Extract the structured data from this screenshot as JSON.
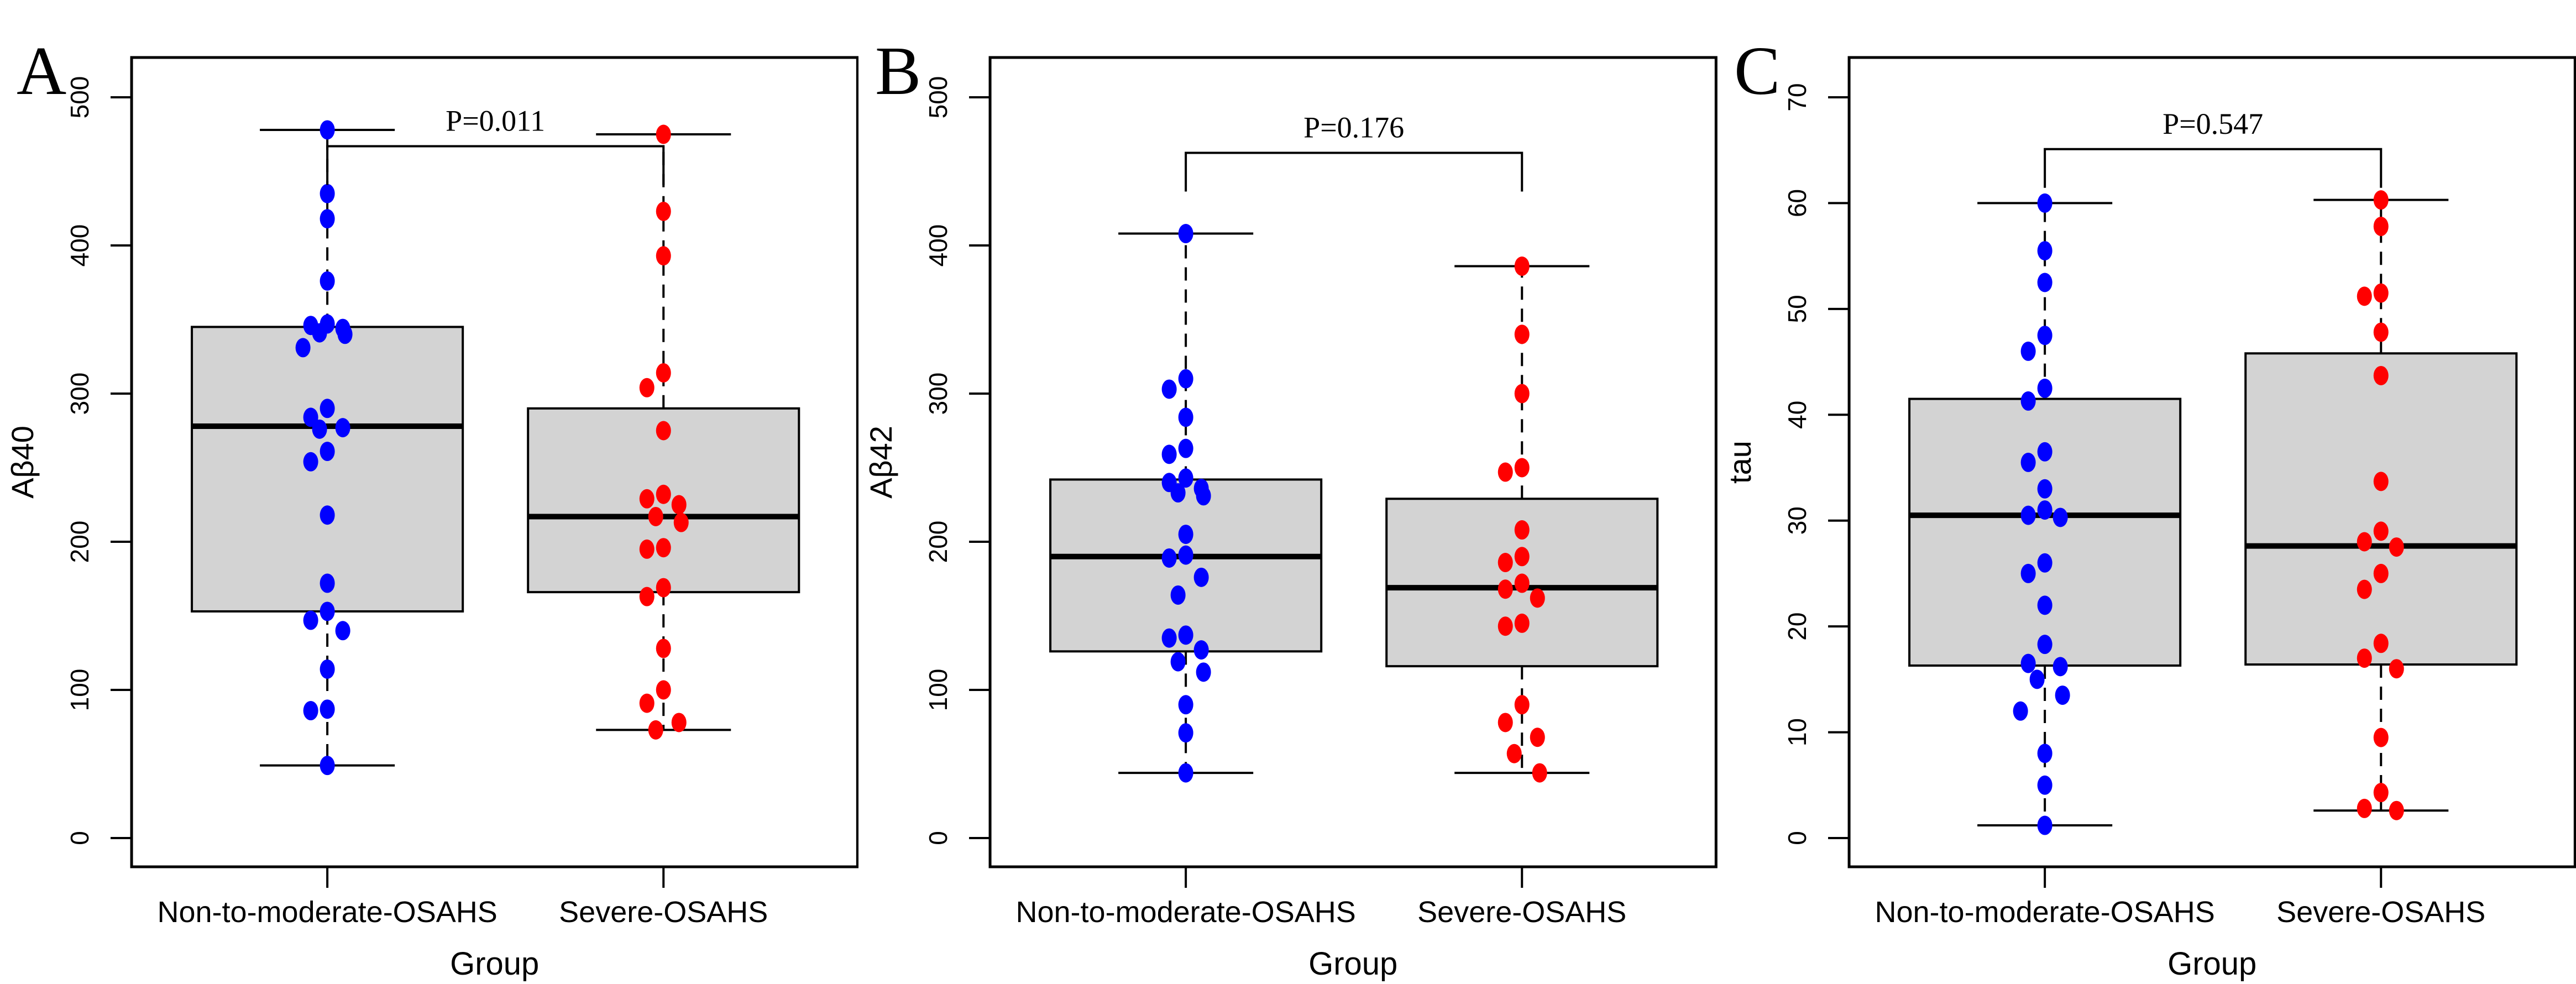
{
  "figure_title": "",
  "p_values": {
    "A": "P=0.011",
    "B": "P=0.176",
    "C": "P=0.547"
  },
  "colors": {
    "group1_point": "#0000ff",
    "group2_point": "#ff0000",
    "box_fill": "#d3d3d3",
    "line": "#000000",
    "background": "#ffffff"
  },
  "chart_data": [
    {
      "type": "boxplot",
      "panel_letter": "A",
      "title": "",
      "xlabel": "Group",
      "ylabel": "Aβ40",
      "ylim": [
        0,
        500
      ],
      "ytick_step": 100,
      "ytick_labels": [
        "0",
        "100",
        "200",
        "300",
        "400",
        "500"
      ],
      "grid": false,
      "legend_position": "none",
      "p_label": "P=0.011",
      "bracket_value_fraction": 0.934,
      "categories": [
        "Non-to-moderate-OSAHS",
        "Severe-OSAHS"
      ],
      "series": [
        {
          "name": "Non-to-moderate-OSAHS",
          "color": "#0000ff",
          "box": {
            "q1": 153,
            "median": 278,
            "q3": 345,
            "whisker_low": 49,
            "whisker_high": 478
          },
          "points": [
            478,
            435,
            418,
            376,
            347,
            346,
            344,
            341,
            340,
            331,
            290,
            284,
            277,
            276,
            261,
            254,
            218,
            172,
            153,
            147,
            140,
            114,
            87,
            86,
            49
          ]
        },
        {
          "name": "Severe-OSAHS",
          "color": "#ff0000",
          "box": {
            "q1": 166,
            "median": 217,
            "q3": 290,
            "whisker_low": 73,
            "whisker_high": 475
          },
          "points": [
            475,
            423,
            393,
            314,
            304,
            275,
            232,
            229,
            225,
            217,
            213,
            196,
            195,
            169,
            163,
            128,
            100,
            91,
            78,
            73
          ]
        }
      ]
    },
    {
      "type": "boxplot",
      "panel_letter": "B",
      "title": "",
      "xlabel": "Group",
      "ylabel": "Aβ42",
      "ylim": [
        0,
        500
      ],
      "ytick_step": 100,
      "ytick_labels": [
        "0",
        "100",
        "200",
        "300",
        "400",
        "500"
      ],
      "grid": false,
      "legend_position": "none",
      "p_label": "P=0.176",
      "bracket_value_fraction": 0.925,
      "categories": [
        "Non-to-moderate-OSAHS",
        "Severe-OSAHS"
      ],
      "series": [
        {
          "name": "Non-to-moderate-OSAHS",
          "color": "#0000ff",
          "box": {
            "q1": 126,
            "median": 190,
            "q3": 242,
            "whisker_low": 44,
            "whisker_high": 408
          },
          "points": [
            408,
            310,
            303,
            284,
            263,
            259,
            243,
            240,
            236,
            233,
            231,
            205,
            191,
            189,
            176,
            164,
            137,
            135,
            127,
            119,
            112,
            90,
            71,
            44
          ]
        },
        {
          "name": "Severe-OSAHS",
          "color": "#ff0000",
          "box": {
            "q1": 116,
            "median": 169,
            "q3": 229,
            "whisker_low": 44,
            "whisker_high": 386
          },
          "points": [
            386,
            340,
            300,
            250,
            247,
            208,
            190,
            186,
            172,
            168,
            162,
            145,
            143,
            90,
            78,
            68,
            57,
            44
          ]
        }
      ]
    },
    {
      "type": "boxplot",
      "panel_letter": "C",
      "title": "",
      "xlabel": "Group",
      "ylabel": "tau",
      "ylim": [
        0,
        70
      ],
      "ytick_step": 10,
      "ytick_labels": [
        "0",
        "10",
        "20",
        "30",
        "40",
        "50",
        "60",
        "70"
      ],
      "grid": false,
      "legend_position": "none",
      "p_label": "P=0.547",
      "bracket_value_fraction": 0.93,
      "categories": [
        "Non-to-moderate-OSAHS",
        "Severe-OSAHS"
      ],
      "series": [
        {
          "name": "Non-to-moderate-OSAHS",
          "color": "#0000ff",
          "box": {
            "q1": 16.3,
            "median": 30.5,
            "q3": 41.5,
            "whisker_low": 1.2,
            "whisker_high": 60
          },
          "points": [
            60,
            55.5,
            52.5,
            47.5,
            46,
            42.5,
            41.3,
            36.5,
            35.5,
            33,
            31,
            30.5,
            30.3,
            26,
            25,
            22,
            18.3,
            16.5,
            16.2,
            15,
            13.5,
            12,
            8,
            5,
            1.2
          ]
        },
        {
          "name": "Severe-OSAHS",
          "color": "#ff0000",
          "box": {
            "q1": 16.4,
            "median": 27.6,
            "q3": 45.8,
            "whisker_low": 2.6,
            "whisker_high": 60.3
          },
          "points": [
            60.3,
            57.8,
            51.5,
            51.2,
            47.8,
            43.7,
            33.7,
            29,
            28,
            27.5,
            25,
            23.5,
            18.4,
            17,
            16,
            9.5,
            4.3,
            2.8,
            2.6
          ]
        }
      ]
    }
  ]
}
